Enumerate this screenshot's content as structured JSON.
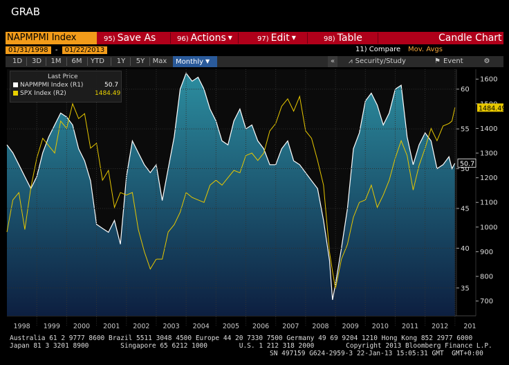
{
  "header": {
    "title": "GRAB"
  },
  "toolbar": {
    "ticker": "NAPMPMI Index",
    "save": {
      "num": "95)",
      "label": "Save As"
    },
    "actions": {
      "num": "96)",
      "label": "Actions"
    },
    "edit": {
      "num": "97)",
      "label": "Edit"
    },
    "table": {
      "num": "98)",
      "label": "Table"
    },
    "chart_type": "Candle Chart"
  },
  "dates": {
    "start": "01/31/1998",
    "dash": "-",
    "end": "01/22/2013"
  },
  "compare_label": "11) Compare",
  "mov_avgs_label": "Mov. Avgs",
  "ranges": [
    "1D",
    "3D",
    "1M",
    "6M",
    "YTD",
    "1Y",
    "5Y",
    "Max"
  ],
  "period": "Monthly",
  "security_study": "Security/Study",
  "event": "Event",
  "legend": {
    "header": "Last Price",
    "rows": [
      {
        "name": "NAPMPMI Index  (R1)",
        "value": "50.7",
        "color": "#ffffff"
      },
      {
        "name": "SPX Index  (R2)",
        "value": "1484.49",
        "color": "#e8d000"
      }
    ]
  },
  "footer": {
    "line1": "Australia 61 2 9777 8600 Brazil 5511 3048 4500 Europe 44 20 7330 7500 Germany 49 69 9204 1210 Hong Kong 852 2977 6000",
    "line2": "Japan 81 3 3201 8900        Singapore 65 6212 1000        U.S. 1 212 318 2000        Copyright 2013 Bloomberg Finance L.P.",
    "line3": "SN 497159 G624-2959-3 22-Jan-13 15:05:31 GMT  GMT+0:00"
  },
  "colors": {
    "pmi_line": "#ffffff",
    "spx_line": "#e8c800",
    "area_top": "#2c8ea0",
    "area_bottom": "#0d1f40"
  },
  "chart_data": {
    "type": "line",
    "x_label_years": [
      "1998",
      "1999",
      "2000",
      "2001",
      "2002",
      "2003",
      "2004",
      "2005",
      "2006",
      "2007",
      "2008",
      "2009",
      "2010",
      "2011",
      "2012",
      "201"
    ],
    "y1": {
      "name": "NAPMPMI Index",
      "ticks": [
        35,
        40,
        45,
        50,
        55,
        60
      ],
      "range": [
        31.5,
        62.5
      ],
      "last": "50.7"
    },
    "y2": {
      "name": "SPX Index",
      "ticks": [
        700,
        800,
        900,
        1000,
        1100,
        1200,
        1300,
        1400,
        1500,
        1600
      ],
      "range": [
        640,
        1640
      ],
      "last": "1484.49"
    },
    "series": [
      {
        "name": "NAPMPMI Index",
        "axis": "R1",
        "style": "area",
        "points": [
          [
            1998.0,
            53.0
          ],
          [
            1998.2,
            52.0
          ],
          [
            1998.4,
            50.5
          ],
          [
            1998.6,
            49.0
          ],
          [
            1998.8,
            47.5
          ],
          [
            1999.0,
            49.0
          ],
          [
            1999.2,
            52.0
          ],
          [
            1999.4,
            54.0
          ],
          [
            1999.6,
            55.5
          ],
          [
            1999.8,
            57.0
          ],
          [
            2000.0,
            56.5
          ],
          [
            2000.2,
            55.5
          ],
          [
            2000.4,
            52.5
          ],
          [
            2000.6,
            51.0
          ],
          [
            2000.8,
            48.5
          ],
          [
            2001.0,
            43.0
          ],
          [
            2001.2,
            42.5
          ],
          [
            2001.4,
            42.0
          ],
          [
            2001.6,
            43.5
          ],
          [
            2001.8,
            40.5
          ],
          [
            2002.0,
            49.0
          ],
          [
            2002.2,
            53.5
          ],
          [
            2002.4,
            52.0
          ],
          [
            2002.6,
            50.5
          ],
          [
            2002.8,
            49.5
          ],
          [
            2003.0,
            50.5
          ],
          [
            2003.2,
            46.0
          ],
          [
            2003.4,
            50.0
          ],
          [
            2003.6,
            54.0
          ],
          [
            2003.8,
            60.0
          ],
          [
            2004.0,
            62.0
          ],
          [
            2004.2,
            61.0
          ],
          [
            2004.4,
            61.5
          ],
          [
            2004.6,
            60.0
          ],
          [
            2004.8,
            57.5
          ],
          [
            2005.0,
            56.0
          ],
          [
            2005.2,
            53.5
          ],
          [
            2005.4,
            53.0
          ],
          [
            2005.6,
            56.0
          ],
          [
            2005.8,
            57.5
          ],
          [
            2006.0,
            55.0
          ],
          [
            2006.2,
            55.5
          ],
          [
            2006.4,
            53.5
          ],
          [
            2006.6,
            52.5
          ],
          [
            2006.8,
            50.5
          ],
          [
            2007.0,
            50.5
          ],
          [
            2007.2,
            52.5
          ],
          [
            2007.4,
            53.5
          ],
          [
            2007.6,
            51.0
          ],
          [
            2007.8,
            50.5
          ],
          [
            2008.0,
            49.5
          ],
          [
            2008.2,
            48.5
          ],
          [
            2008.4,
            47.5
          ],
          [
            2008.6,
            43.5
          ],
          [
            2008.8,
            38.5
          ],
          [
            2008.9,
            33.5
          ],
          [
            2009.0,
            35.5
          ],
          [
            2009.2,
            40.0
          ],
          [
            2009.4,
            45.0
          ],
          [
            2009.6,
            52.5
          ],
          [
            2009.8,
            54.5
          ],
          [
            2010.0,
            58.5
          ],
          [
            2010.2,
            59.5
          ],
          [
            2010.4,
            58.0
          ],
          [
            2010.6,
            55.5
          ],
          [
            2010.8,
            57.0
          ],
          [
            2011.0,
            60.0
          ],
          [
            2011.2,
            60.5
          ],
          [
            2011.4,
            54.0
          ],
          [
            2011.6,
            50.5
          ],
          [
            2011.8,
            53.0
          ],
          [
            2012.0,
            54.5
          ],
          [
            2012.2,
            53.5
          ],
          [
            2012.4,
            50.0
          ],
          [
            2012.6,
            50.5
          ],
          [
            2012.8,
            51.5
          ],
          [
            2012.9,
            50.0
          ],
          [
            2013.0,
            50.7
          ]
        ]
      },
      {
        "name": "SPX Index",
        "axis": "R2",
        "style": "line",
        "points": [
          [
            1998.0,
            980
          ],
          [
            1998.2,
            1110
          ],
          [
            1998.4,
            1140
          ],
          [
            1998.6,
            990
          ],
          [
            1998.8,
            1160
          ],
          [
            1999.0,
            1280
          ],
          [
            1999.2,
            1360
          ],
          [
            1999.4,
            1330
          ],
          [
            1999.6,
            1300
          ],
          [
            1999.8,
            1430
          ],
          [
            2000.0,
            1400
          ],
          [
            2000.2,
            1500
          ],
          [
            2000.4,
            1440
          ],
          [
            2000.6,
            1460
          ],
          [
            2000.8,
            1320
          ],
          [
            2001.0,
            1340
          ],
          [
            2001.2,
            1190
          ],
          [
            2001.4,
            1230
          ],
          [
            2001.6,
            1080
          ],
          [
            2001.8,
            1140
          ],
          [
            2002.0,
            1130
          ],
          [
            2002.2,
            1140
          ],
          [
            2002.4,
            990
          ],
          [
            2002.6,
            900
          ],
          [
            2002.8,
            830
          ],
          [
            2003.0,
            870
          ],
          [
            2003.2,
            870
          ],
          [
            2003.4,
            980
          ],
          [
            2003.6,
            1010
          ],
          [
            2003.8,
            1060
          ],
          [
            2004.0,
            1140
          ],
          [
            2004.2,
            1120
          ],
          [
            2004.4,
            1110
          ],
          [
            2004.6,
            1100
          ],
          [
            2004.8,
            1170
          ],
          [
            2005.0,
            1190
          ],
          [
            2005.2,
            1170
          ],
          [
            2005.4,
            1200
          ],
          [
            2005.6,
            1230
          ],
          [
            2005.8,
            1220
          ],
          [
            2006.0,
            1290
          ],
          [
            2006.2,
            1300
          ],
          [
            2006.4,
            1270
          ],
          [
            2006.6,
            1300
          ],
          [
            2006.8,
            1390
          ],
          [
            2007.0,
            1420
          ],
          [
            2007.2,
            1490
          ],
          [
            2007.4,
            1520
          ],
          [
            2007.6,
            1470
          ],
          [
            2007.8,
            1530
          ],
          [
            2008.0,
            1390
          ],
          [
            2008.2,
            1360
          ],
          [
            2008.4,
            1270
          ],
          [
            2008.6,
            1170
          ],
          [
            2008.8,
            900
          ],
          [
            2008.9,
            820
          ],
          [
            2009.0,
            750
          ],
          [
            2009.2,
            870
          ],
          [
            2009.4,
            930
          ],
          [
            2009.6,
            1040
          ],
          [
            2009.8,
            1100
          ],
          [
            2010.0,
            1110
          ],
          [
            2010.2,
            1170
          ],
          [
            2010.4,
            1080
          ],
          [
            2010.6,
            1130
          ],
          [
            2010.8,
            1190
          ],
          [
            2011.0,
            1280
          ],
          [
            2011.2,
            1350
          ],
          [
            2011.4,
            1290
          ],
          [
            2011.6,
            1150
          ],
          [
            2011.8,
            1250
          ],
          [
            2012.0,
            1320
          ],
          [
            2012.2,
            1400
          ],
          [
            2012.4,
            1350
          ],
          [
            2012.6,
            1410
          ],
          [
            2012.8,
            1420
          ],
          [
            2012.9,
            1430
          ],
          [
            2013.0,
            1484.49
          ]
        ]
      }
    ]
  }
}
